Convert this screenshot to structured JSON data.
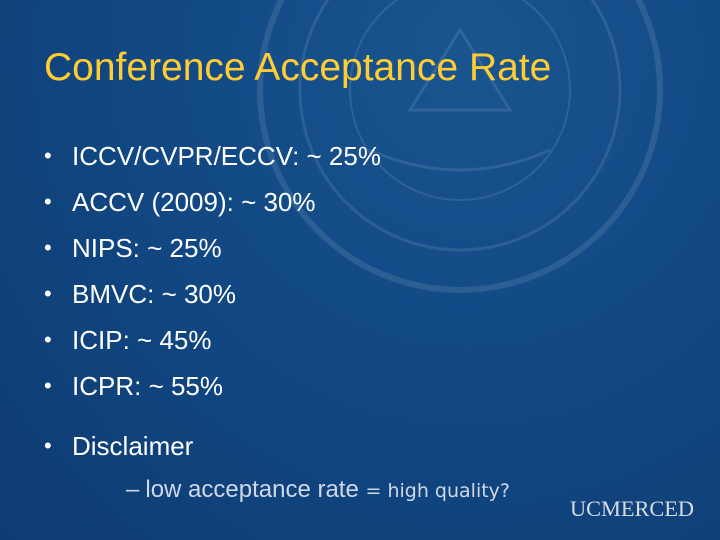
{
  "slide": {
    "title": "Conference Acceptance Rate",
    "bullet_glyph": "•",
    "bullets": [
      "ICCV/CVPR/ECCV: ~ 25%",
      "ACCV (2009): ~ 30%",
      "NIPS: ~ 25%",
      "BMVC: ~ 30%",
      "ICIP: ~ 45%",
      "ICPR: ~ 55%"
    ],
    "disclaimer": {
      "label": "Disclaimer",
      "sub_dash": "–",
      "sub_text": "low acceptance rate",
      "sub_suffix": "= high quality?"
    },
    "logo_text": "UCMERCED"
  },
  "colors": {
    "background": "#124a86",
    "title": "#ffcc33",
    "text": "#ffffff",
    "logo": "#d7dce4"
  }
}
